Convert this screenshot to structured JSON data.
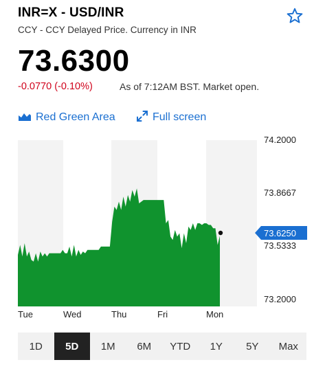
{
  "header": {
    "ticker": "INR=X - USD/INR",
    "subtitle": "CCY - CCY Delayed Price. Currency in INR",
    "price": "73.6300",
    "change": "-0.0770 (-0.10%)",
    "as_of": "As of 7:12AM BST. Market open."
  },
  "colors": {
    "accent": "#1a6fd1",
    "negative": "#d0021b",
    "area_fill": "#10932e",
    "price_tag": "#1a6fd1"
  },
  "toolbar": {
    "chart_type_label": "Red Green Area",
    "chart_type_icon": "area-chart-icon",
    "fullscreen_label": "Full screen",
    "fullscreen_icon": "expand-arrows-icon",
    "watchlist_icon": "star-outline-icon"
  },
  "range_buttons": [
    "1D",
    "5D",
    "1M",
    "6M",
    "YTD",
    "1Y",
    "5Y",
    "Max"
  ],
  "range_selected": "5D",
  "chart_data": {
    "type": "area",
    "title": "",
    "xlabel": "",
    "ylabel": "",
    "ylim": [
      73.2,
      74.2
    ],
    "y_ticks": [
      "74.2000",
      "73.8667",
      "73.5333",
      "73.2000"
    ],
    "x_ticks": [
      "Tue",
      "Wed",
      "Thu",
      "Fri",
      "Mon"
    ],
    "current_price_label": "73.6250",
    "current_price_value": 73.625,
    "baseline": 73.2,
    "grid": "alternating vertical day bands",
    "series": [
      {
        "values": [
          73.51,
          73.57,
          73.5,
          73.58,
          73.5,
          73.53,
          73.48,
          73.47,
          73.52,
          73.47,
          73.53,
          73.5,
          73.52,
          73.5,
          73.52,
          73.52,
          73.52,
          73.52,
          73.52,
          73.52,
          73.54,
          73.52,
          73.52,
          73.56,
          73.5,
          73.57,
          73.5,
          73.54,
          73.51,
          73.53,
          73.52,
          73.54,
          73.54,
          73.54,
          73.54,
          73.54,
          73.54,
          73.56,
          73.56,
          73.56,
          73.56,
          73.56,
          73.71,
          73.8,
          73.78,
          73.83,
          73.78,
          73.86,
          73.8,
          73.87,
          73.83,
          73.9,
          73.86,
          73.91,
          73.82,
          73.83,
          73.84,
          73.84,
          73.84,
          73.84,
          73.84,
          73.84,
          73.84,
          73.84,
          73.84,
          73.84,
          73.7,
          73.72,
          73.62,
          73.6,
          73.66,
          73.62,
          73.64,
          73.55,
          73.64,
          73.58,
          73.68,
          73.66,
          73.7,
          73.66,
          73.7,
          73.7,
          73.69,
          73.7,
          73.7,
          73.69,
          73.69,
          73.67,
          73.67,
          73.57,
          73.625
        ]
      }
    ]
  }
}
